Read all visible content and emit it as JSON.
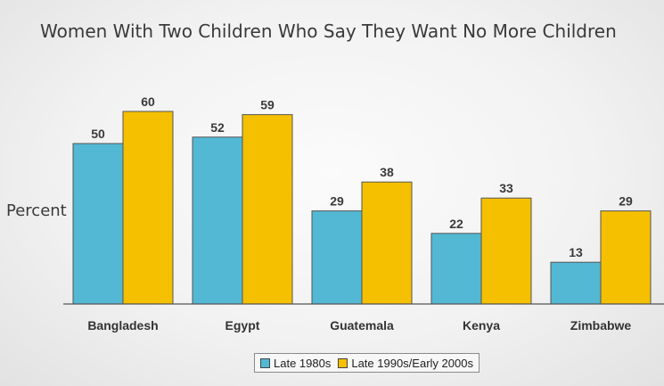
{
  "chart_data": {
    "type": "bar",
    "title": "Women With Two Children Who Say They Want No More Children",
    "ylabel": "Percent",
    "xlabel": "",
    "categories": [
      "Bangladesh",
      "Egypt",
      "Guatemala",
      "Kenya",
      "Zimbabwe"
    ],
    "series": [
      {
        "name": "Late 1980s",
        "values": [
          50,
          52,
          29,
          22,
          13
        ],
        "color": "#53b8d4"
      },
      {
        "name": "Late 1990s/Early 2000s",
        "values": [
          60,
          59,
          38,
          33,
          29
        ],
        "color": "#f5c000"
      }
    ],
    "ylim": [
      0,
      60
    ],
    "grid": false,
    "legend_position": "bottom-center"
  }
}
